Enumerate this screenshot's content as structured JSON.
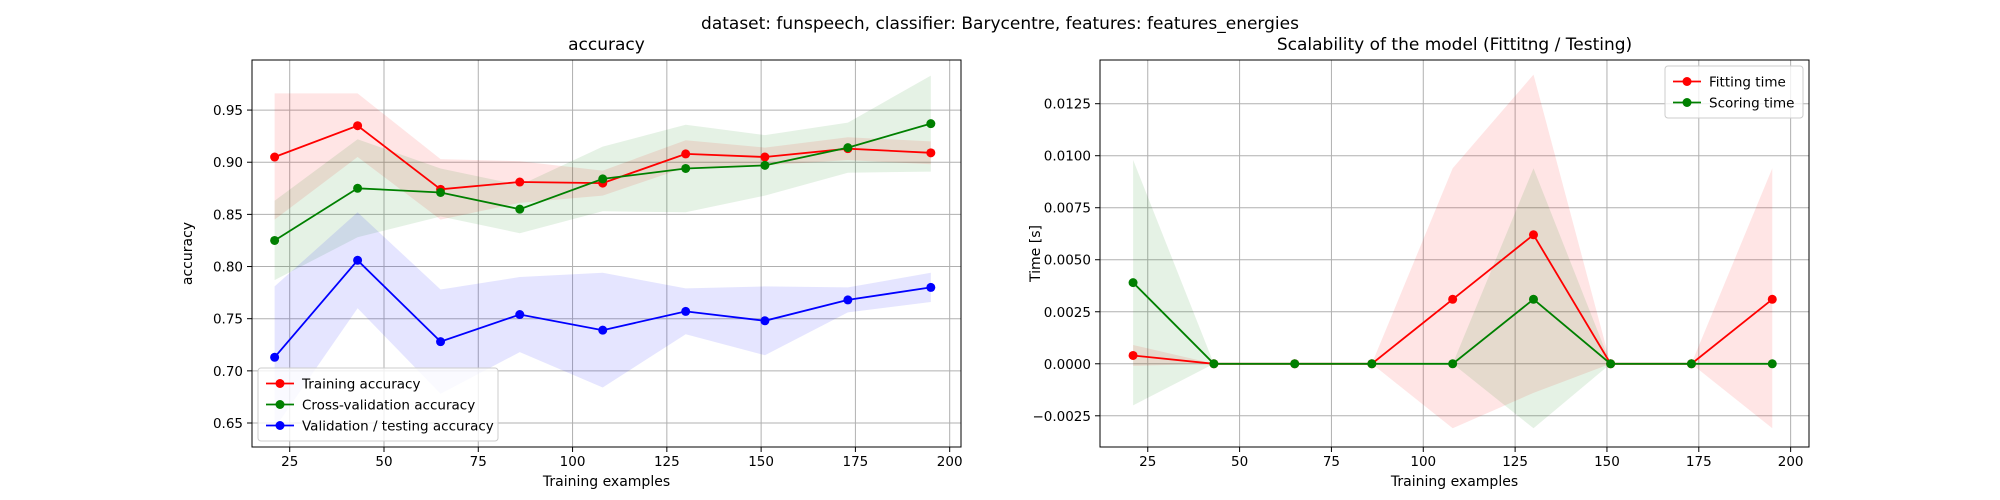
{
  "figure": {
    "suptitle": "dataset: funspeech, classifier: Barycentre, features: features_energies"
  },
  "chart_data": [
    {
      "type": "line",
      "title": "accuracy",
      "xlabel": "Training examples",
      "ylabel": "accuracy",
      "xlim": [
        15,
        203
      ],
      "ylim": [
        0.627,
        0.998
      ],
      "xticks": [
        25,
        50,
        75,
        100,
        125,
        150,
        175,
        200
      ],
      "xtick_labels": [
        "25",
        "50",
        "75",
        "100",
        "125",
        "150",
        "175",
        "200"
      ],
      "yticks": [
        0.65,
        0.7,
        0.75,
        0.8,
        0.85,
        0.9,
        0.95
      ],
      "ytick_labels": [
        "0.65",
        "0.70",
        "0.75",
        "0.80",
        "0.85",
        "0.90",
        "0.95"
      ],
      "grid": true,
      "legend_position": "lower-left",
      "x": [
        21,
        43,
        65,
        86,
        108,
        130,
        151,
        173,
        195
      ],
      "series": [
        {
          "name": "Training accuracy",
          "color": "#ff0000",
          "values": [
            0.905,
            0.935,
            0.874,
            0.881,
            0.88,
            0.908,
            0.905,
            0.913,
            0.909
          ],
          "band_low": [
            0.845,
            0.905,
            0.845,
            0.861,
            0.868,
            0.895,
            0.897,
            0.902,
            0.898
          ],
          "band_high": [
            0.966,
            0.966,
            0.903,
            0.901,
            0.892,
            0.921,
            0.914,
            0.924,
            0.92
          ]
        },
        {
          "name": "Cross-validation accuracy",
          "color": "#008000",
          "values": [
            0.825,
            0.875,
            0.871,
            0.855,
            0.884,
            0.894,
            0.897,
            0.914,
            0.937
          ],
          "band_low": [
            0.787,
            0.828,
            0.848,
            0.832,
            0.853,
            0.852,
            0.868,
            0.89,
            0.891
          ],
          "band_high": [
            0.863,
            0.922,
            0.894,
            0.878,
            0.915,
            0.936,
            0.926,
            0.938,
            0.983
          ]
        },
        {
          "name": "Validation / testing accuracy",
          "color": "#0000ff",
          "values": [
            0.713,
            0.806,
            0.728,
            0.754,
            0.739,
            0.757,
            0.748,
            0.768,
            0.78
          ],
          "band_low": [
            0.645,
            0.76,
            0.678,
            0.718,
            0.684,
            0.735,
            0.715,
            0.756,
            0.766
          ],
          "band_high": [
            0.781,
            0.852,
            0.778,
            0.79,
            0.794,
            0.779,
            0.781,
            0.78,
            0.794
          ]
        }
      ]
    },
    {
      "type": "line",
      "title": "Scalability of the model (Fittitng / Testing)",
      "xlabel": "Training examples",
      "ylabel": "Time [s]",
      "xlim": [
        12,
        205
      ],
      "ylim": [
        -0.004,
        0.0146
      ],
      "xticks": [
        25,
        50,
        75,
        100,
        125,
        150,
        175,
        200
      ],
      "xtick_labels": [
        "25",
        "50",
        "75",
        "100",
        "125",
        "150",
        "175",
        "200"
      ],
      "yticks": [
        -0.0025,
        0.0,
        0.0025,
        0.005,
        0.0075,
        0.01,
        0.0125
      ],
      "ytick_labels": [
        "−0.0025",
        "0.0000",
        "0.0025",
        "0.0050",
        "0.0075",
        "0.0100",
        "0.0125"
      ],
      "grid": true,
      "legend_position": "upper-right",
      "x": [
        21,
        43,
        65,
        86,
        108,
        130,
        151,
        173,
        195
      ],
      "series": [
        {
          "name": "Fitting time",
          "color": "#ff0000",
          "values": [
            0.0004,
            0.0,
            0.0,
            0.0,
            0.0031,
            0.0062,
            0.0,
            0.0,
            0.0031
          ],
          "band_low": [
            -0.0001,
            0.0,
            0.0,
            0.0,
            -0.0031,
            -0.0014,
            0.0,
            0.0,
            -0.0031
          ],
          "band_high": [
            0.0009,
            0.0,
            0.0,
            0.0,
            0.0094,
            0.0139,
            0.0,
            0.0,
            0.0094
          ]
        },
        {
          "name": "Scoring time",
          "color": "#008000",
          "values": [
            0.0039,
            0.0,
            0.0,
            0.0,
            0.0,
            0.0031,
            0.0,
            0.0,
            0.0
          ],
          "band_low": [
            -0.002,
            0.0,
            0.0,
            0.0,
            0.0,
            -0.0031,
            0.0,
            0.0,
            0.0
          ],
          "band_high": [
            0.0098,
            0.0,
            0.0,
            0.0,
            0.0,
            0.0094,
            0.0,
            0.0,
            0.0
          ]
        }
      ]
    }
  ]
}
